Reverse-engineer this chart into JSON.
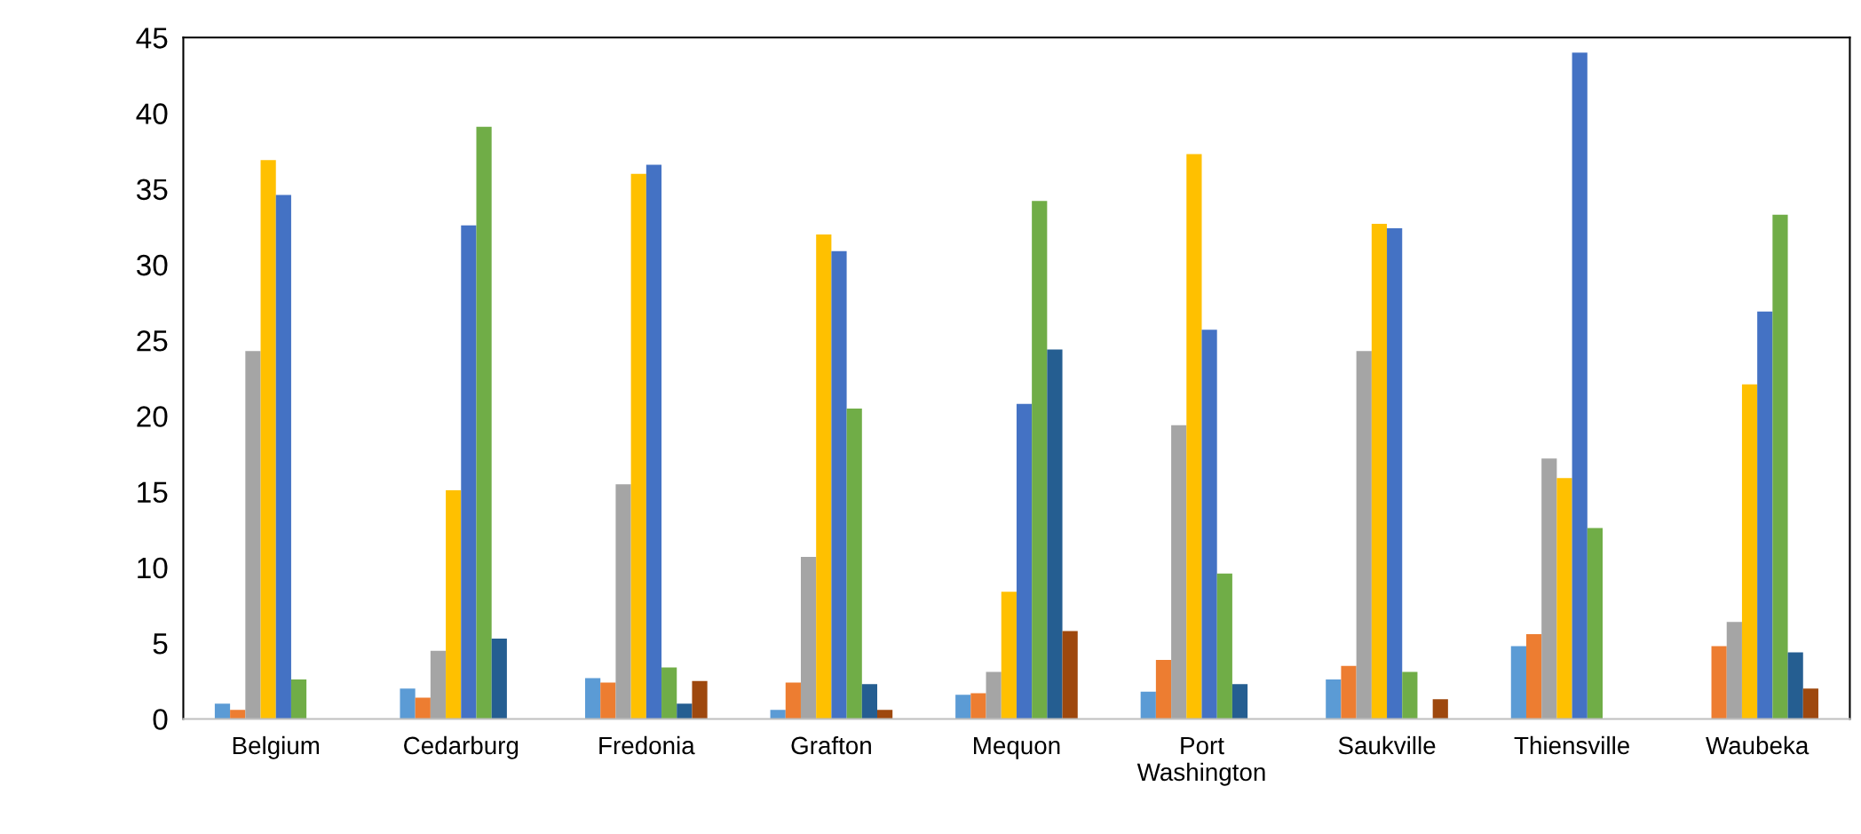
{
  "chart_data": {
    "type": "bar",
    "categories": [
      "Belgium",
      "Cedarburg",
      "Fredonia",
      "Grafton",
      "Mequon",
      "Port\nWashington",
      "Saukville",
      "Thiensville",
      "Waubeka"
    ],
    "series": [
      {
        "color": "#5b9bd5",
        "values": [
          1.0,
          2.0,
          2.7,
          0.6,
          1.6,
          1.8,
          2.6,
          4.8,
          0
        ]
      },
      {
        "color": "#ed7d31",
        "values": [
          0.6,
          1.4,
          2.4,
          2.4,
          1.7,
          3.9,
          3.5,
          5.6,
          4.8
        ]
      },
      {
        "color": "#a5a5a5",
        "values": [
          24.3,
          4.5,
          15.5,
          10.7,
          3.1,
          19.4,
          24.3,
          17.2,
          6.4
        ]
      },
      {
        "color": "#ffc000",
        "values": [
          36.9,
          15.1,
          36.0,
          32.0,
          8.4,
          37.3,
          32.7,
          15.9,
          22.1
        ]
      },
      {
        "color": "#4472c4",
        "values": [
          34.6,
          32.6,
          36.6,
          30.9,
          20.8,
          25.7,
          32.4,
          44.0,
          26.9
        ]
      },
      {
        "color": "#70ad47",
        "values": [
          2.6,
          39.1,
          3.4,
          20.5,
          34.2,
          9.6,
          3.1,
          12.6,
          33.3
        ]
      },
      {
        "color": "#255e91",
        "values": [
          0,
          5.3,
          1.0,
          2.3,
          24.4,
          2.3,
          0,
          0,
          4.4
        ]
      },
      {
        "color": "#9e480e",
        "values": [
          0,
          0,
          2.5,
          0.6,
          5.8,
          0,
          1.3,
          0,
          2.0
        ]
      }
    ],
    "ylim": [
      0,
      45
    ],
    "yticks": [
      0,
      5,
      10,
      15,
      20,
      25,
      30,
      35,
      40,
      45
    ],
    "grid": false,
    "legend": false
  }
}
